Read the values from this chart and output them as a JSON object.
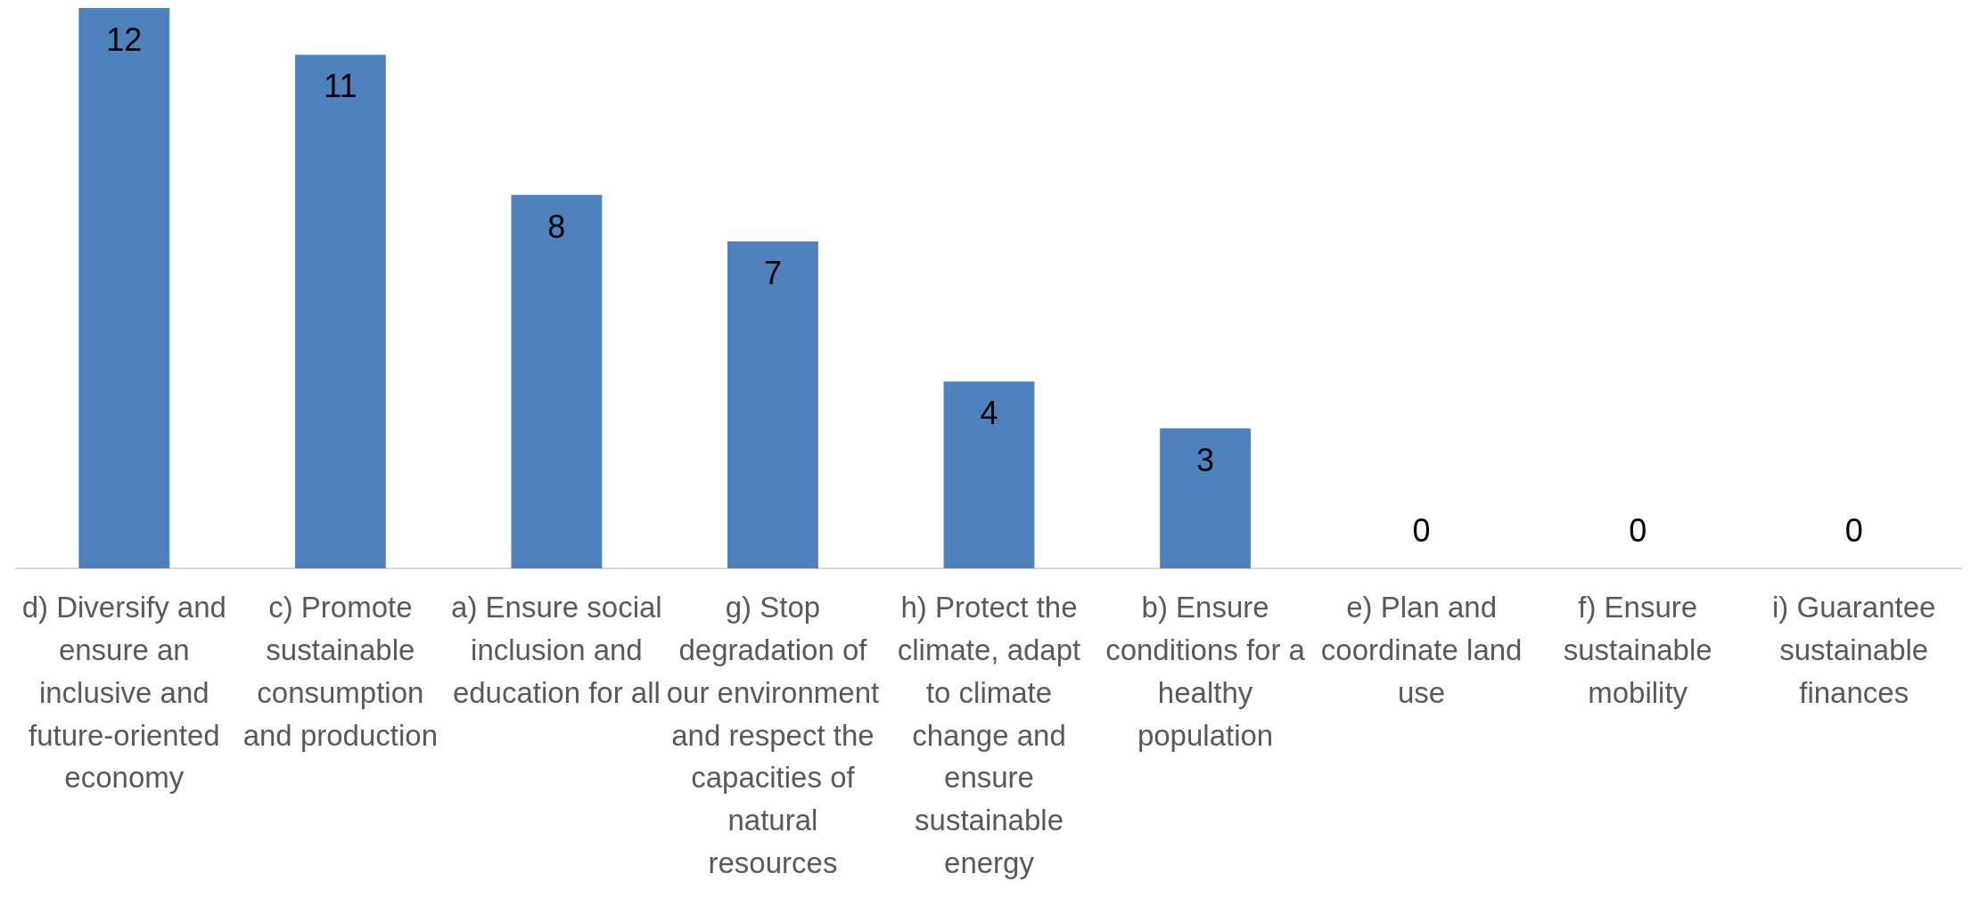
{
  "chart_data": {
    "type": "bar",
    "categories": [
      "d) Diversify and ensure an inclusive and future-oriented economy",
      "c) Promote sustainable consumption and production",
      "a) Ensure social inclusion and education for all",
      "g) Stop degradation of our environment and respect the capacities of natural resources",
      "h) Protect the climate, adapt to climate change and ensure sustainable energy",
      "b) Ensure conditions for a healthy population",
      "e) Plan and coordinate land use",
      "f) Ensure sustainable mobility",
      "i) Guarantee sustainable finances"
    ],
    "values": [
      12,
      11,
      8,
      7,
      4,
      3,
      0,
      0,
      0
    ],
    "color": "#4f81bd",
    "data_labels": true
  }
}
